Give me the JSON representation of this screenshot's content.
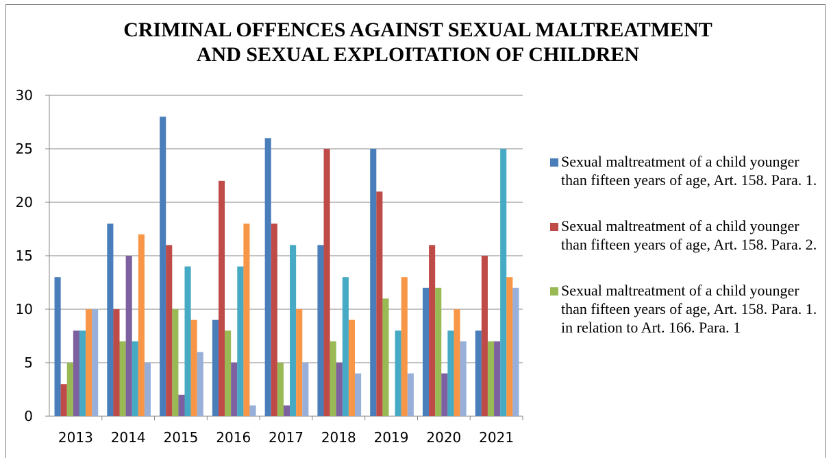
{
  "chart_data": {
    "type": "bar",
    "title": "CRIMINAL OFFENCES AGAINST SEXUAL MALTREATMENT AND SEXUAL EXPLOITATION OF CHILDREN",
    "title_lines": [
      "CRIMINAL OFFENCES AGAINST SEXUAL MALTREATMENT",
      "AND SEXUAL EXPLOITATION OF CHILDREN"
    ],
    "categories": [
      "2013",
      "2014",
      "2015",
      "2016",
      "2017",
      "2018",
      "2019",
      "2020",
      "2021"
    ],
    "ylim": [
      0,
      30
    ],
    "yticks": [
      "0",
      "5",
      "10",
      "15",
      "20",
      "25",
      "30"
    ],
    "grid": true,
    "legend_position": "right",
    "series": [
      {
        "name": "Sexual maltreatment of a child younger than fifteen years of age, Art. 158. Para. 1.",
        "color": "#4a7ebb",
        "values": [
          13,
          18,
          28,
          9,
          26,
          16,
          25,
          12,
          8
        ]
      },
      {
        "name": "Sexual maltreatment of a child younger than fifteen years of age, Art. 158. Para. 2.",
        "color": "#be4b48",
        "values": [
          3,
          10,
          16,
          22,
          18,
          25,
          21,
          16,
          15
        ]
      },
      {
        "name": "Sexual maltreatment of a child younger than fifteen years of age, Art. 158. Para. 1. in relation to Art. 166. Para. 1",
        "color": "#98b954",
        "values": [
          5,
          7,
          10,
          8,
          5,
          7,
          11,
          12,
          7
        ]
      },
      {
        "color": "#7d60a0",
        "values": [
          8,
          15,
          2,
          5,
          1,
          5,
          0,
          4,
          7
        ]
      },
      {
        "color": "#46aac5",
        "values": [
          8,
          7,
          14,
          14,
          16,
          13,
          8,
          8,
          25
        ]
      },
      {
        "color": "#f79646",
        "values": [
          10,
          17,
          9,
          18,
          10,
          9,
          13,
          10,
          13
        ]
      },
      {
        "color": "#98b0d9",
        "values": [
          10,
          5,
          6,
          1,
          5,
          4,
          4,
          7,
          12
        ]
      }
    ]
  }
}
